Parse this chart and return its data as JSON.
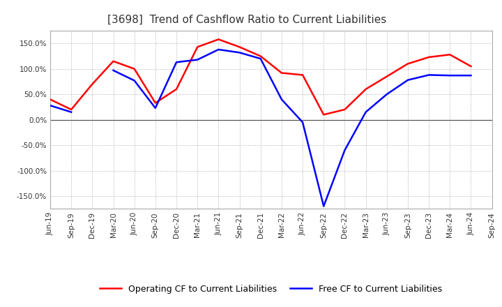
{
  "title": "[3698]  Trend of Cashflow Ratio to Current Liabilities",
  "x_labels": [
    "Jun-19",
    "Sep-19",
    "Dec-19",
    "Mar-20",
    "Jun-20",
    "Sep-20",
    "Dec-20",
    "Mar-21",
    "Jun-21",
    "Sep-21",
    "Dec-21",
    "Mar-22",
    "Jun-22",
    "Sep-22",
    "Dec-22",
    "Mar-23",
    "Jun-23",
    "Sep-23",
    "Dec-23",
    "Mar-24",
    "Jun-24",
    "Sep-24"
  ],
  "operating_cf": [
    40,
    20,
    70,
    115,
    100,
    33,
    60,
    143,
    158,
    143,
    125,
    92,
    88,
    10,
    20,
    60,
    85,
    110,
    123,
    128,
    105,
    null
  ],
  "free_cf": [
    28,
    15,
    null,
    97,
    77,
    23,
    113,
    118,
    138,
    132,
    120,
    40,
    -5,
    -170,
    -60,
    15,
    50,
    78,
    88,
    87,
    87,
    null
  ],
  "operating_color": "#ff0000",
  "free_color": "#0000ff",
  "ylim": [
    -175,
    175
  ],
  "yticks": [
    -150,
    -100,
    -50,
    0,
    50,
    100,
    150
  ],
  "background_color": "#ffffff",
  "legend_op": "Operating CF to Current Liabilities",
  "legend_free": "Free CF to Current Liabilities",
  "title_fontsize": 11,
  "line_width": 1.8,
  "grid_color": "#aaaaaa",
  "grid_style": ":",
  "zero_line_color": "#555555"
}
